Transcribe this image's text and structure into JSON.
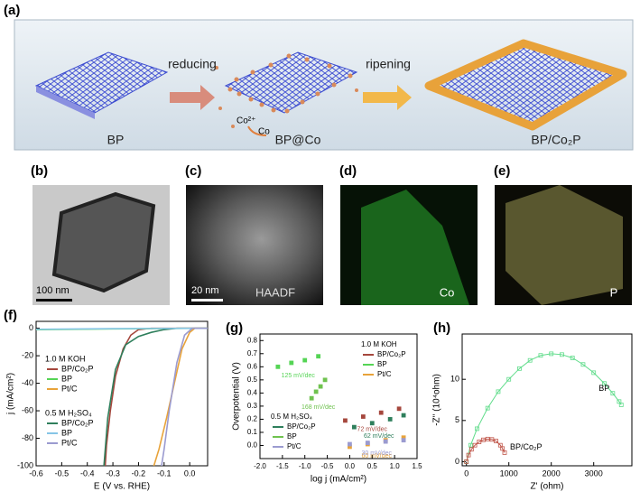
{
  "schematic": {
    "label": "(a)",
    "step1": "reducing",
    "step2": "ripening",
    "stage1": "BP",
    "stage2": "BP@Co",
    "stage3": "BP/Co₂P",
    "ion": "Co²⁺",
    "atom": "Co"
  },
  "micrographs": [
    {
      "label": "(b)",
      "scale": "100 nm"
    },
    {
      "label": "(c)",
      "scale": "20 nm",
      "mode": "HAADF"
    },
    {
      "label": "(d)",
      "element": "Co"
    },
    {
      "label": "(e)",
      "element": "P"
    }
  ],
  "chart_data": [
    {
      "type": "line",
      "panel": "(f)",
      "y_label": "j (mA/cm²)",
      "x_label": "E (V vs. RHE)",
      "xlim": [
        -0.6,
        0.07
      ],
      "xticks": [
        -0.6,
        -0.5,
        -0.4,
        -0.3,
        -0.2,
        -0.1,
        {
          "value": 0,
          "label": "0.0"
        }
      ],
      "ylim": [
        -100,
        5
      ],
      "yticks": [
        -100,
        -80,
        -60,
        -40,
        -20,
        0
      ],
      "series": [
        {
          "group": "1.0 M KOH",
          "name": "BP/Co₂P",
          "color": "#a5473d",
          "x": [
            0.07,
            -0.15,
            -0.2,
            -0.23,
            -0.26,
            -0.29,
            -0.31,
            -0.325,
            -0.33
          ],
          "values": [
            0,
            0,
            -1,
            -5,
            -15,
            -35,
            -60,
            -85,
            -100
          ]
        },
        {
          "group": "1.0 M KOH",
          "name": "BP",
          "color": "#55d455",
          "x": [
            0.07,
            -0.3,
            -0.6
          ],
          "values": [
            0,
            -0.5,
            -1
          ]
        },
        {
          "group": "1.0 M KOH",
          "name": "Pt/C",
          "color": "#e8a33a",
          "x": [
            0.07,
            0.02,
            0,
            -0.03,
            -0.06,
            -0.09,
            -0.12,
            -0.14
          ],
          "values": [
            0,
            0,
            -3,
            -15,
            -40,
            -65,
            -88,
            -100
          ]
        },
        {
          "group": "0.5 M H₂SO₄",
          "name": "BP/Co₂P",
          "color": "#2f7f5c",
          "x": [
            0.07,
            -0.05,
            -0.1,
            -0.15,
            -0.2,
            -0.25,
            -0.29,
            -0.32,
            -0.335
          ],
          "values": [
            0,
            0,
            -1,
            -3,
            -6,
            -12,
            -30,
            -65,
            -100
          ]
        },
        {
          "group": "0.5 M H₂SO₄",
          "name": "BP",
          "color": "#86c5e6",
          "x": [
            0.07,
            -0.3,
            -0.6
          ],
          "values": [
            0,
            -0.3,
            -0.8
          ]
        },
        {
          "group": "0.5 M H₂SO₄",
          "name": "Pt/C",
          "color": "#9b9bd0",
          "x": [
            0.07,
            0.01,
            -0.02,
            -0.05,
            -0.08,
            -0.1,
            -0.11
          ],
          "values": [
            0,
            0,
            -5,
            -25,
            -60,
            -88,
            -100
          ]
        }
      ]
    },
    {
      "type": "scatter",
      "panel": "(g)",
      "y_label": "Overpotential (V)",
      "x_label": "log j (mA/cm²)",
      "xlim": [
        -2,
        1.5
      ],
      "xticks": [
        {
          "value": -2,
          "label": "-2.0"
        },
        -1.5,
        {
          "value": -1,
          "label": "-1.0"
        },
        -0.5,
        {
          "value": 0,
          "label": "0.0"
        },
        0.5,
        {
          "value": 1,
          "label": "1.0"
        },
        1.5
      ],
      "ylim": [
        -0.1,
        0.85
      ],
      "yticks": [
        {
          "value": 0,
          "label": "0.0"
        },
        0.1,
        0.2,
        0.3,
        0.4,
        0.5,
        0.6,
        0.7,
        0.8
      ],
      "series": [
        {
          "group": "1.0 M KOH",
          "name": "BP/Co₂P",
          "color": "#a5473d",
          "annotation": "72 mV/dec",
          "x": [
            -0.1,
            0.3,
            0.7,
            1.1
          ],
          "values": [
            0.19,
            0.22,
            0.25,
            0.28
          ]
        },
        {
          "group": "1.0 M KOH",
          "name": "BP",
          "color": "#55d455",
          "annotation": "125 mV/dec",
          "x": [
            -1.6,
            -1.3,
            -1,
            -0.7
          ],
          "values": [
            0.6,
            0.63,
            0.65,
            0.68
          ]
        },
        {
          "group": "1.0 M KOH",
          "name": "Pt/C",
          "color": "#e8a33a",
          "annotation": "60 mV/dec",
          "x": [
            0,
            0.4,
            0.8,
            1.2
          ],
          "values": [
            -0.01,
            0.01,
            0.04,
            0.06
          ]
        },
        {
          "group": "0.5 M H₂SO₄",
          "name": "BP/Co₂P",
          "color": "#2f7f5c",
          "annotation": "62 mV/dec",
          "x": [
            0.1,
            0.5,
            0.9,
            1.2
          ],
          "values": [
            0.14,
            0.17,
            0.2,
            0.23
          ]
        },
        {
          "group": "0.5 M H₂SO₄",
          "name": "BP",
          "color": "#6fc24f",
          "annotation": "168 mV/dec",
          "x": [
            -0.85,
            -0.75,
            -0.65,
            -0.55
          ],
          "values": [
            0.36,
            0.41,
            0.45,
            0.5
          ]
        },
        {
          "group": "0.5 M H₂SO₄",
          "name": "Pt/C",
          "color": "#9b9bd0",
          "annotation": "30 mV/dec",
          "x": [
            0,
            0.4,
            0.8,
            1.2
          ],
          "values": [
            0.01,
            0.02,
            0.03,
            0.04
          ]
        }
      ]
    },
    {
      "type": "scatter",
      "panel": "(h)",
      "y_label": "-Z'' (10⁴ohm)",
      "x_label": "Z' (ohm)",
      "connected": true,
      "xlim": [
        -100,
        3900
      ],
      "xticks": [
        0,
        1000,
        2000,
        3000
      ],
      "ylim": [
        -0.5,
        15.5
      ],
      "yticks": [
        0,
        5,
        10
      ],
      "series": [
        {
          "name": "BP",
          "color": "#5fdc8a",
          "x": [
            0,
            100,
            250,
            500,
            750,
            1000,
            1250,
            1500,
            1750,
            2000,
            2250,
            2500,
            2750,
            3000,
            3250,
            3450,
            3600,
            3650
          ],
          "values": [
            0,
            2,
            4,
            6.5,
            8.5,
            10,
            11.3,
            12.3,
            12.9,
            13.1,
            13,
            12.6,
            11.8,
            10.8,
            9.5,
            8.3,
            7.3,
            6.9
          ]
        },
        {
          "name": "BP/Co₂P",
          "color": "#c0564a",
          "x": [
            0,
            50,
            120,
            200,
            300,
            400,
            500,
            600,
            700,
            800,
            850,
            900
          ],
          "values": [
            0,
            0.8,
            1.5,
            2,
            2.4,
            2.65,
            2.75,
            2.7,
            2.5,
            2,
            1.6,
            1.1
          ]
        }
      ]
    }
  ]
}
